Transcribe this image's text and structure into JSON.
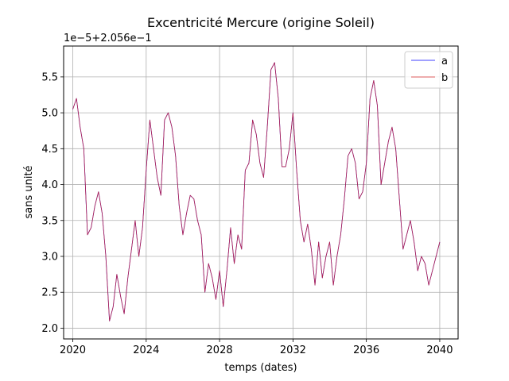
{
  "chart_data": {
    "type": "line",
    "title": "Excentricité Mercure (origine Soleil)",
    "xlabel": "temps (dates)",
    "ylabel": "sans unité",
    "offset_text": "1e−5+2.056e−1",
    "xlim": [
      2019.5,
      2041.0
    ],
    "ylim": [
      1.85,
      5.93
    ],
    "x_ticks": [
      2020,
      2024,
      2028,
      2032,
      2036,
      2040
    ],
    "x_tick_labels": [
      "2020",
      "2024",
      "2028",
      "2032",
      "2036",
      "2040"
    ],
    "y_ticks": [
      2.0,
      2.5,
      3.0,
      3.5,
      4.0,
      4.5,
      5.0,
      5.5
    ],
    "y_tick_labels": [
      "2.0",
      "2.5",
      "3.0",
      "3.5",
      "4.0",
      "4.5",
      "5.0",
      "5.5"
    ],
    "grid": true,
    "legend_position": "top-right",
    "x": [
      2020.0,
      2020.2,
      2020.4,
      2020.6,
      2020.8,
      2021.0,
      2021.2,
      2021.4,
      2021.6,
      2021.8,
      2022.0,
      2022.2,
      2022.4,
      2022.6,
      2022.8,
      2023.0,
      2023.2,
      2023.4,
      2023.6,
      2023.8,
      2024.0,
      2024.2,
      2024.4,
      2024.6,
      2024.8,
      2025.0,
      2025.2,
      2025.4,
      2025.6,
      2025.8,
      2026.0,
      2026.2,
      2026.4,
      2026.6,
      2026.8,
      2027.0,
      2027.2,
      2027.4,
      2027.6,
      2027.8,
      2028.0,
      2028.2,
      2028.4,
      2028.6,
      2028.8,
      2029.0,
      2029.2,
      2029.4,
      2029.6,
      2029.8,
      2030.0,
      2030.2,
      2030.4,
      2030.6,
      2030.8,
      2031.0,
      2031.2,
      2031.4,
      2031.6,
      2031.8,
      2032.0,
      2032.2,
      2032.4,
      2032.6,
      2032.8,
      2033.0,
      2033.2,
      2033.4,
      2033.6,
      2033.8,
      2034.0,
      2034.2,
      2034.4,
      2034.6,
      2034.8,
      2035.0,
      2035.2,
      2035.4,
      2035.6,
      2035.8,
      2036.0,
      2036.2,
      2036.4,
      2036.6,
      2036.8,
      2037.0,
      2037.2,
      2037.4,
      2037.6,
      2037.8,
      2038.0,
      2038.2,
      2038.4,
      2038.6,
      2038.8,
      2039.0,
      2039.2,
      2039.4,
      2039.6,
      2039.8,
      2040.0
    ],
    "series": [
      {
        "name": "a",
        "color": "#0000ff",
        "values": [
          5.05,
          5.2,
          4.8,
          4.5,
          3.3,
          3.4,
          3.7,
          3.9,
          3.6,
          3.0,
          2.1,
          2.3,
          2.75,
          2.45,
          2.2,
          2.7,
          3.1,
          3.5,
          3.0,
          3.4,
          4.2,
          4.9,
          4.5,
          4.1,
          3.85,
          4.9,
          5.0,
          4.8,
          4.4,
          3.7,
          3.3,
          3.6,
          3.85,
          3.8,
          3.5,
          3.3,
          2.5,
          2.9,
          2.7,
          2.4,
          2.8,
          2.3,
          2.8,
          3.4,
          2.9,
          3.3,
          3.1,
          4.2,
          4.3,
          4.9,
          4.7,
          4.3,
          4.1,
          4.8,
          5.6,
          5.7,
          5.2,
          4.25,
          4.25,
          4.5,
          5.0,
          4.2,
          3.5,
          3.2,
          3.45,
          3.1,
          2.6,
          3.2,
          2.7,
          3.0,
          3.2,
          2.6,
          3.0,
          3.3,
          3.8,
          4.4,
          4.5,
          4.3,
          3.8,
          3.9,
          4.3,
          5.2,
          5.45,
          5.1,
          4.0,
          4.3,
          4.6,
          4.8,
          4.5,
          3.8,
          3.1,
          3.3,
          3.5,
          3.2,
          2.8,
          3.0,
          2.9,
          2.6,
          2.8,
          3.0,
          3.2
        ]
      },
      {
        "name": "b",
        "color": "#d62728",
        "values": [
          5.05,
          5.2,
          4.8,
          4.5,
          3.3,
          3.4,
          3.7,
          3.9,
          3.6,
          3.0,
          2.1,
          2.3,
          2.75,
          2.45,
          2.2,
          2.7,
          3.1,
          3.5,
          3.0,
          3.4,
          4.2,
          4.9,
          4.5,
          4.1,
          3.85,
          4.9,
          5.0,
          4.8,
          4.4,
          3.7,
          3.3,
          3.6,
          3.85,
          3.8,
          3.5,
          3.3,
          2.5,
          2.9,
          2.7,
          2.4,
          2.8,
          2.3,
          2.8,
          3.4,
          2.9,
          3.3,
          3.1,
          4.2,
          4.3,
          4.9,
          4.7,
          4.3,
          4.1,
          4.8,
          5.6,
          5.7,
          5.2,
          4.25,
          4.25,
          4.5,
          5.0,
          4.2,
          3.5,
          3.2,
          3.45,
          3.1,
          2.6,
          3.2,
          2.7,
          3.0,
          3.2,
          2.6,
          3.0,
          3.3,
          3.8,
          4.4,
          4.5,
          4.3,
          3.8,
          3.9,
          4.3,
          5.2,
          5.45,
          5.1,
          4.0,
          4.3,
          4.6,
          4.8,
          4.5,
          3.8,
          3.1,
          3.3,
          3.5,
          3.2,
          2.8,
          3.0,
          2.9,
          2.6,
          2.8,
          3.0,
          3.2
        ]
      }
    ]
  }
}
